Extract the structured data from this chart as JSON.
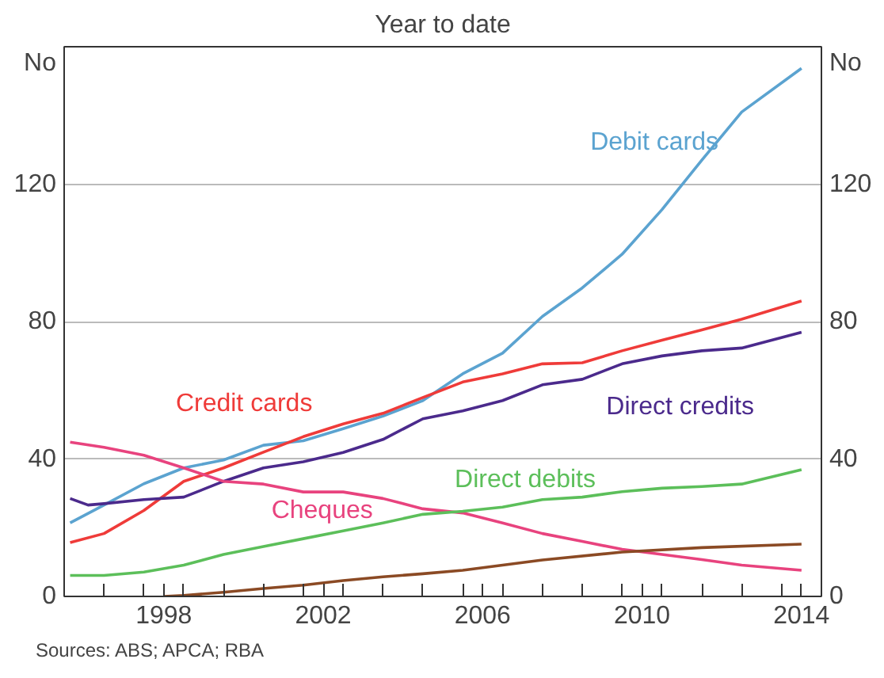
{
  "chart_data": {
    "type": "line",
    "title": "Year to date",
    "ylabel": "No",
    "y2label": "No",
    "xlim": [
      1996,
      2015
    ],
    "xticks": [
      {
        "value": 1996,
        "label": null
      },
      {
        "value": 1997,
        "label": null
      },
      {
        "value": 1998,
        "label": null
      },
      {
        "value": 1998.5,
        "label": "1998"
      },
      {
        "value": 1999,
        "label": null
      },
      {
        "value": 2000,
        "label": null
      },
      {
        "value": 2001,
        "label": null
      },
      {
        "value": 2002,
        "label": null
      },
      {
        "value": 2002.5,
        "label": "2002"
      },
      {
        "value": 2003,
        "label": null
      },
      {
        "value": 2004,
        "label": null
      },
      {
        "value": 2005,
        "label": null
      },
      {
        "value": 2006,
        "label": null
      },
      {
        "value": 2006.5,
        "label": "2006"
      },
      {
        "value": 2007,
        "label": null
      },
      {
        "value": 2008,
        "label": null
      },
      {
        "value": 2009,
        "label": null
      },
      {
        "value": 2010,
        "label": null
      },
      {
        "value": 2010.5,
        "label": "2010"
      },
      {
        "value": 2011,
        "label": null
      },
      {
        "value": 2012,
        "label": null
      },
      {
        "value": 2013,
        "label": null
      },
      {
        "value": 2014,
        "label": null
      },
      {
        "value": 2014.5,
        "label": "2014"
      },
      {
        "value": 2015,
        "label": null
      }
    ],
    "ylim": [
      0,
      160
    ],
    "yticks": [
      0,
      40,
      80,
      120
    ],
    "y2lim": [
      0,
      160
    ],
    "y2ticks": [
      0,
      40,
      80,
      120
    ],
    "grid": "y",
    "legend": false,
    "series": [
      {
        "name": "Debit cards",
        "color": "#5ba3d0",
        "x": [
          1996.15,
          1997,
          1998,
          1999,
          2000,
          2001,
          2002,
          2003,
          2004,
          2005,
          2006,
          2007,
          2008,
          2009,
          2010,
          2011,
          2012,
          2013,
          2014.5
        ],
        "values": [
          21.4,
          26.6,
          32.8,
          37.4,
          39.7,
          44,
          45.3,
          48.8,
          52.5,
          57,
          64.8,
          70.8,
          81.5,
          89.8,
          99.6,
          112.6,
          127,
          141,
          153.7
        ]
      },
      {
        "name": "Credit cards",
        "color": "#ef3b39",
        "x": [
          1996.15,
          1997,
          1998,
          1999,
          2000,
          2001,
          2002,
          2003,
          2004,
          2005,
          2006,
          2007,
          2008,
          2009,
          2010,
          2011,
          2012,
          2013,
          2014.5
        ],
        "values": [
          15.7,
          18.3,
          25,
          33.5,
          37.4,
          42,
          46.5,
          50.2,
          53.3,
          57.9,
          62.4,
          64.8,
          67.7,
          68,
          71.5,
          74.6,
          77.6,
          80.7,
          86
        ]
      },
      {
        "name": "Direct credits",
        "color": "#4b2a8c",
        "x": [
          1996.15,
          1996.6,
          1997,
          1998,
          1999,
          2000,
          2001,
          2002,
          2003,
          2004,
          2005,
          2006,
          2007,
          2008,
          2009,
          2010,
          2011,
          2012,
          2013,
          2014.5
        ],
        "values": [
          28.5,
          26.6,
          27,
          28.2,
          28.9,
          33.5,
          37.4,
          39.2,
          41.9,
          45.7,
          51.7,
          54,
          57,
          61.6,
          63.2,
          67.7,
          70,
          71.5,
          72.3,
          76.9
        ]
      },
      {
        "name": "Cheques",
        "color": "#e8437e",
        "x": [
          1996.15,
          1997,
          1998,
          1999,
          2000,
          2001,
          2002,
          2003,
          2004,
          2005,
          2006,
          2007,
          2008,
          2009,
          2010,
          2011,
          2012,
          2013,
          2014.5
        ],
        "values": [
          44.9,
          43.4,
          41.1,
          37.4,
          33.5,
          32.7,
          30.4,
          30.4,
          28.5,
          25.5,
          24.3,
          21.4,
          18.3,
          16,
          13.7,
          12.2,
          10.7,
          9.1,
          7.6
        ]
      },
      {
        "name": "Direct debits",
        "color": "#5cbf5a",
        "x": [
          1996.15,
          1997,
          1998,
          1999,
          2000,
          2001,
          2002,
          2003,
          2004,
          2005,
          2006,
          2007,
          2008,
          2009,
          2010,
          2011,
          2012,
          2013,
          2014.5
        ],
        "values": [
          6.1,
          6.1,
          7.1,
          9.1,
          12.2,
          14.5,
          16.8,
          19.1,
          21.4,
          23.9,
          24.8,
          26,
          28.2,
          28.9,
          30.5,
          31.5,
          32,
          32.7,
          36.9
        ]
      },
      {
        "color": "#8b4a24",
        "x": [
          1998.5,
          1999,
          2000,
          2001,
          2002,
          2003,
          2004,
          2005,
          2006,
          2008,
          2010,
          2012,
          2014.5
        ],
        "values": [
          0,
          0.3,
          1.2,
          2.3,
          3.3,
          4.6,
          5.7,
          6.6,
          7.6,
          10.6,
          12.9,
          14.2,
          15.2
        ]
      }
    ],
    "annotations": [
      "Sources: ABS; APCA; RBA"
    ]
  }
}
